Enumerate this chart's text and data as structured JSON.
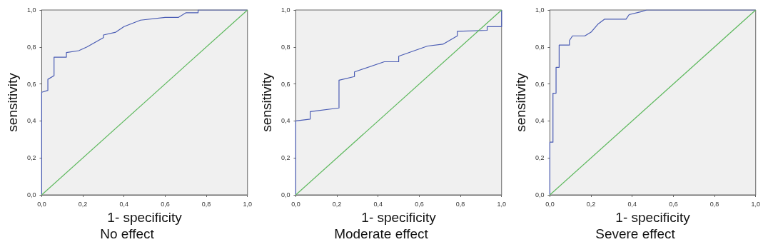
{
  "chart_data": [
    {
      "type": "line",
      "title": "No effect",
      "xlabel": "1- specificity",
      "ylabel": "sensitivity",
      "marker": "none",
      "xlim": [
        0,
        1
      ],
      "ylim": [
        0,
        1
      ],
      "xticks": [
        {
          "value": 0,
          "label": "0,0"
        },
        {
          "value": 0.2,
          "label": "0,2"
        },
        {
          "value": 0.4,
          "label": "0,4"
        },
        {
          "value": 0.6,
          "label": "0,6"
        },
        {
          "value": 0.8,
          "label": "0,8"
        },
        {
          "value": 1,
          "label": "1,0"
        }
      ],
      "yticks": [
        {
          "value": 0,
          "label": "0,0"
        },
        {
          "value": 0.2,
          "label": "0,2"
        },
        {
          "value": 0.4,
          "label": "0,4"
        },
        {
          "value": 0.6,
          "label": "0,6"
        },
        {
          "value": 0.8,
          "label": "0,8"
        },
        {
          "value": 1,
          "label": "1,0"
        }
      ],
      "series": [
        {
          "color": "#4a5cb4",
          "x": [
            0,
            0,
            0.03,
            0.03,
            0.06,
            0.06,
            0.12,
            0.12,
            0.18,
            0.22,
            0.3,
            0.3,
            0.36,
            0.4,
            0.48,
            0.6,
            0.665,
            0.7,
            0.76,
            0.76,
            1
          ],
          "values": [
            0,
            0.555,
            0.565,
            0.625,
            0.645,
            0.745,
            0.745,
            0.77,
            0.78,
            0.8,
            0.85,
            0.865,
            0.88,
            0.91,
            0.945,
            0.96,
            0.96,
            0.985,
            0.985,
            1,
            1
          ]
        },
        {
          "color": "#5cb85c",
          "x": [
            0,
            1
          ],
          "values": [
            0,
            1
          ]
        }
      ]
    },
    {
      "type": "line",
      "title": "Moderate effect",
      "xlabel": "1- specificity",
      "ylabel": "sensitivity",
      "marker": "none",
      "xlim": [
        0,
        1
      ],
      "ylim": [
        0,
        1
      ],
      "xticks": [
        {
          "value": 0,
          "label": "0,0"
        },
        {
          "value": 0.2,
          "label": "0,2"
        },
        {
          "value": 0.4,
          "label": "0,4"
        },
        {
          "value": 0.6,
          "label": "0,6"
        },
        {
          "value": 0.8,
          "label": "0,8"
        },
        {
          "value": 1,
          "label": "1,0"
        }
      ],
      "yticks": [
        {
          "value": 0,
          "label": "0,0"
        },
        {
          "value": 0.2,
          "label": "0,2"
        },
        {
          "value": 0.4,
          "label": "0,4"
        },
        {
          "value": 0.6,
          "label": "0,6"
        },
        {
          "value": 0.8,
          "label": "0,8"
        },
        {
          "value": 1,
          "label": "1,0"
        }
      ],
      "series": [
        {
          "color": "#4a5cb4",
          "x": [
            0,
            0,
            0.07,
            0.07,
            0.21,
            0.21,
            0.285,
            0.285,
            0.43,
            0.5,
            0.5,
            0.64,
            0.715,
            0.785,
            0.785,
            0.93,
            0.93,
            1,
            1
          ],
          "values": [
            0,
            0.4,
            0.41,
            0.45,
            0.47,
            0.62,
            0.64,
            0.665,
            0.72,
            0.72,
            0.75,
            0.805,
            0.815,
            0.86,
            0.885,
            0.89,
            0.91,
            0.91,
            1
          ]
        },
        {
          "color": "#5cb85c",
          "x": [
            0,
            1
          ],
          "values": [
            0,
            1
          ]
        }
      ]
    },
    {
      "type": "line",
      "title": "Severe effect",
      "xlabel": "1- specificity",
      "ylabel": "sensitivity",
      "marker": "none",
      "xlim": [
        0,
        1
      ],
      "ylim": [
        0,
        1
      ],
      "xticks": [
        {
          "value": 0,
          "label": "0,0"
        },
        {
          "value": 0.2,
          "label": "0,2"
        },
        {
          "value": 0.4,
          "label": "0,4"
        },
        {
          "value": 0.6,
          "label": "0,6"
        },
        {
          "value": 0.8,
          "label": "0,8"
        },
        {
          "value": 1,
          "label": "1,0"
        }
      ],
      "yticks": [
        {
          "value": 0,
          "label": "0,0"
        },
        {
          "value": 0.2,
          "label": "0,2"
        },
        {
          "value": 0.4,
          "label": "0,4"
        },
        {
          "value": 0.6,
          "label": "0,6"
        },
        {
          "value": 0.8,
          "label": "0,8"
        },
        {
          "value": 1,
          "label": "1,0"
        }
      ],
      "series": [
        {
          "color": "#4a5cb4",
          "x": [
            0,
            0,
            0.015,
            0.015,
            0.03,
            0.03,
            0.045,
            0.045,
            0.095,
            0.095,
            0.11,
            0.17,
            0.2,
            0.235,
            0.265,
            0.37,
            0.385,
            0.44,
            0.47,
            1
          ],
          "values": [
            0,
            0.285,
            0.285,
            0.55,
            0.55,
            0.69,
            0.69,
            0.81,
            0.81,
            0.835,
            0.86,
            0.86,
            0.88,
            0.925,
            0.95,
            0.95,
            0.975,
            0.99,
            1,
            1
          ]
        },
        {
          "color": "#5cb85c",
          "x": [
            0,
            1
          ],
          "values": [
            0,
            1
          ]
        }
      ]
    }
  ]
}
